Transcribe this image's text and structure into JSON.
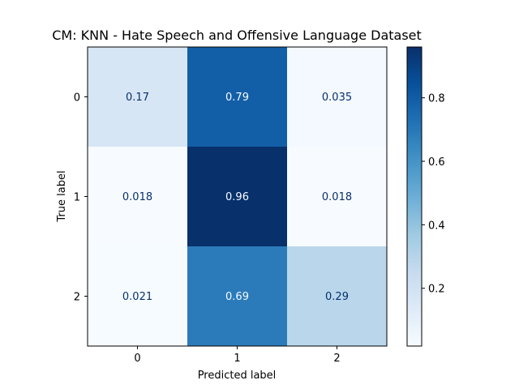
{
  "chart_data": {
    "type": "heatmap",
    "title": "CM: KNN - Hate Speech and Offensive Language Dataset",
    "xlabel": "Predicted label",
    "ylabel": "True label",
    "x_categories": [
      "0",
      "1",
      "2"
    ],
    "y_categories": [
      "0",
      "1",
      "2"
    ],
    "values": [
      [
        0.17,
        0.79,
        0.035
      ],
      [
        0.018,
        0.96,
        0.018
      ],
      [
        0.021,
        0.69,
        0.29
      ]
    ],
    "cell_labels": [
      [
        "0.17",
        "0.79",
        "0.035"
      ],
      [
        "0.018",
        "0.96",
        "0.018"
      ],
      [
        "0.021",
        "0.69",
        "0.29"
      ]
    ],
    "colormap": "Blues",
    "color_range": [
      0.018,
      0.96
    ],
    "colorbar_ticks": [
      "0.2",
      "0.4",
      "0.6",
      "0.8"
    ],
    "colors": {
      "low": "#f7fbff",
      "high": "#08306b",
      "text_dark": "#08306b",
      "text_light": "#f7fbff"
    }
  }
}
